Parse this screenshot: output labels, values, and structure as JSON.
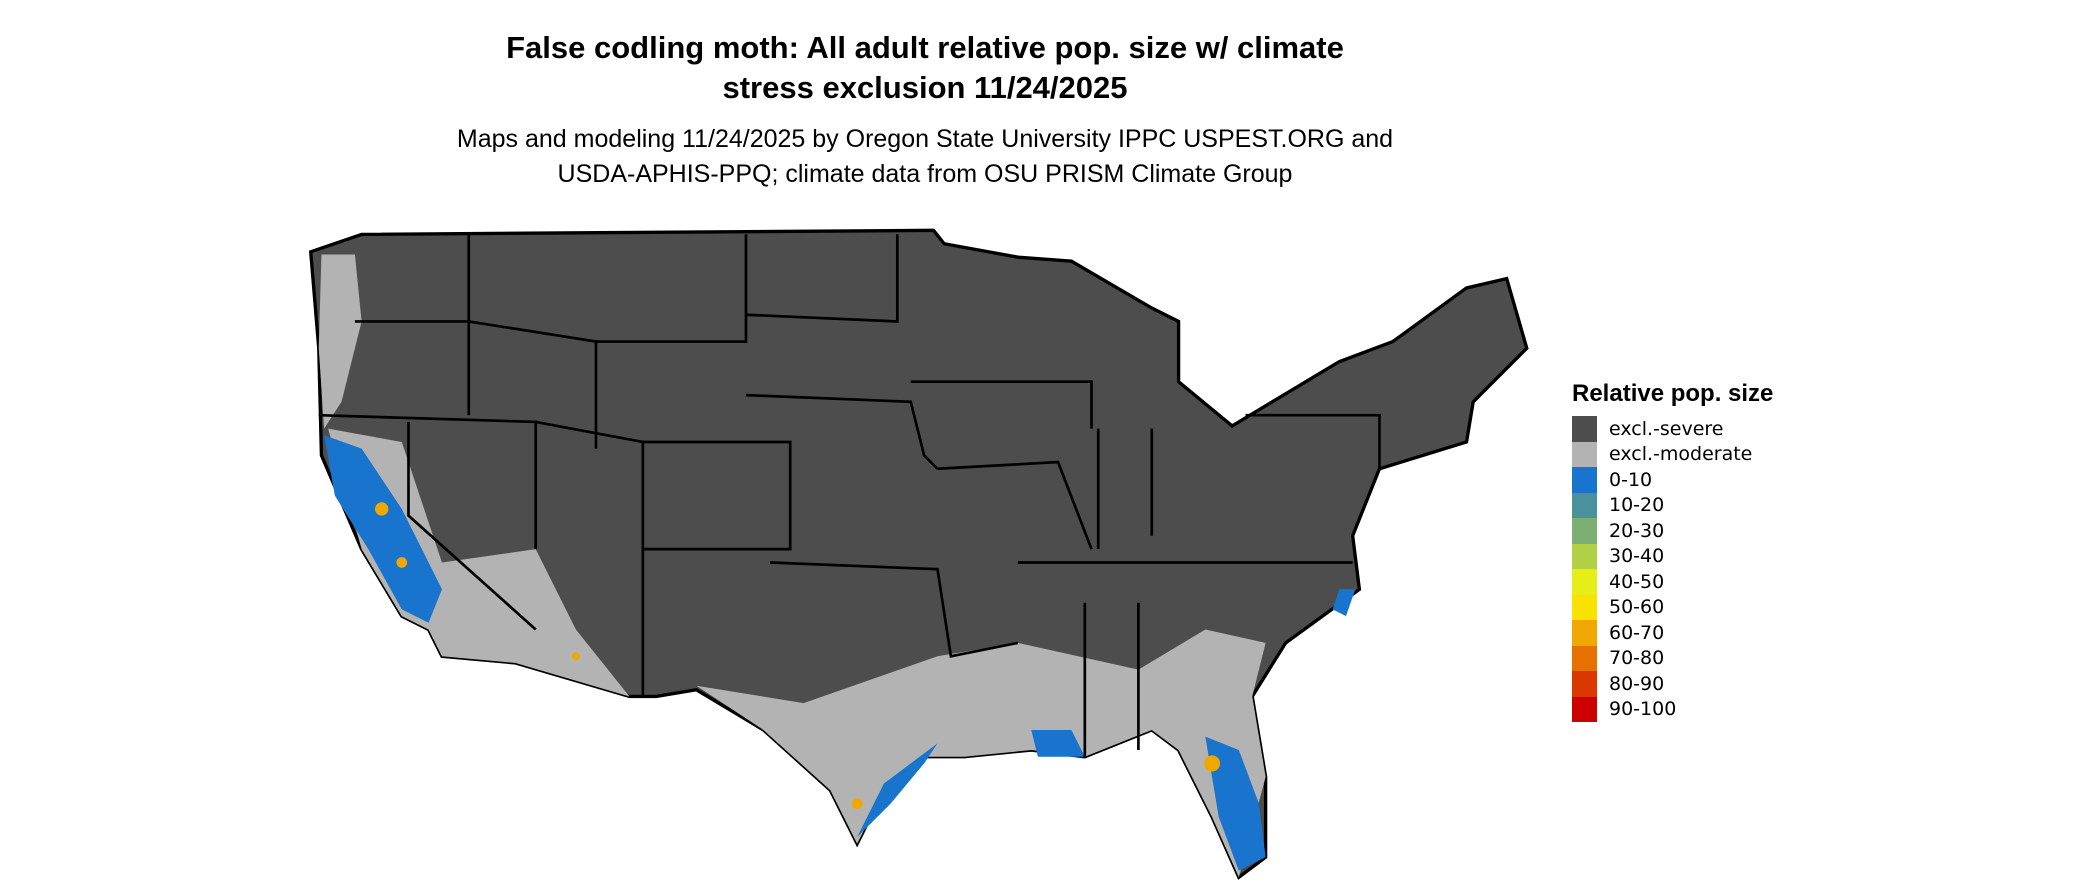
{
  "title_line1": "False codling moth: All adult relative pop. size w/ climate",
  "title_line2": "stress exclusion 11/24/2025",
  "subtitle_line1": "Maps and modeling 11/24/2025 by Oregon State University IPPC USPEST.ORG and",
  "subtitle_line2": "USDA-APHIS-PPQ; climate data from OSU PRISM Climate Group",
  "legend": {
    "title": "Relative pop. size",
    "items": [
      {
        "label": "excl.-severe",
        "color": "#4d4d4d"
      },
      {
        "label": "excl.-moderate",
        "color": "#b3b3b3"
      },
      {
        "label": "0-10",
        "color": "#1874cd"
      },
      {
        "label": "10-20",
        "color": "#4a919e"
      },
      {
        "label": "20-30",
        "color": "#7daf74"
      },
      {
        "label": "30-40",
        "color": "#b2d045"
      },
      {
        "label": "40-50",
        "color": "#e5ef17"
      },
      {
        "label": "50-60",
        "color": "#f8e200"
      },
      {
        "label": "60-70",
        "color": "#f0a800"
      },
      {
        "label": "70-80",
        "color": "#e67000"
      },
      {
        "label": "80-90",
        "color": "#da3800"
      },
      {
        "label": "90-100",
        "color": "#cc0000"
      }
    ]
  }
}
